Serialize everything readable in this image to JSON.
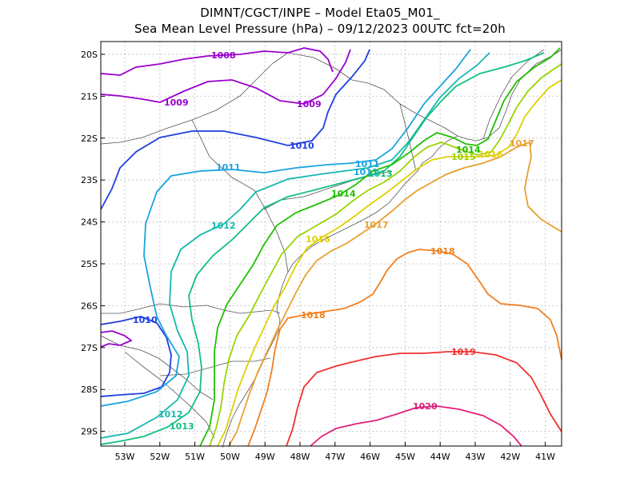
{
  "title": {
    "line1": "DIMNT/CGCT/INPE –  Model Eta05_M01_",
    "line2": "Sea Mean Level Pressure (hPa) – 09/12/2023 00UTC fct=20h"
  },
  "axes": {
    "lon_ticks": [
      "53W",
      "52W",
      "51W",
      "50W",
      "49W",
      "48W",
      "47W",
      "46W",
      "45W",
      "44W",
      "43W",
      "42W",
      "41W"
    ],
    "lat_ticks": [
      "20S",
      "21S",
      "22S",
      "23S",
      "24S",
      "25S",
      "26S",
      "27S",
      "28S",
      "29S"
    ]
  },
  "contour_labels": [
    {
      "text": "1008",
      "color": "#9a00cc"
    },
    {
      "text": "1009",
      "color": "#9a00cc"
    },
    {
      "text": "1009",
      "color": "#9a00cc"
    },
    {
      "text": "1010",
      "color": "#1f3fe0"
    },
    {
      "text": "1010",
      "color": "#1f3fe0"
    },
    {
      "text": "1011",
      "color": "#1aa3e0"
    },
    {
      "text": "1011",
      "color": "#1aa3e0"
    },
    {
      "text": "1011",
      "color": "#1aa3e0"
    },
    {
      "text": "1012",
      "color": "#14b8b0"
    },
    {
      "text": "1012",
      "color": "#14b8b0"
    },
    {
      "text": "1013",
      "color": "#12c080"
    },
    {
      "text": "1013",
      "color": "#12c080"
    },
    {
      "text": "1014",
      "color": "#20c000"
    },
    {
      "text": "1014",
      "color": "#20c000"
    },
    {
      "text": "1015",
      "color": "#9ad400"
    },
    {
      "text": "1016",
      "color": "#e0d000"
    },
    {
      "text": "1016",
      "color": "#e0d000"
    },
    {
      "text": "1017",
      "color": "#e8a030"
    },
    {
      "text": "1017",
      "color": "#e8a030"
    },
    {
      "text": "1018",
      "color": "#f08020"
    },
    {
      "text": "1018",
      "color": "#f08020"
    },
    {
      "text": "1019",
      "color": "#f03030"
    },
    {
      "text": "1020",
      "color": "#e0207a"
    }
  ]
}
